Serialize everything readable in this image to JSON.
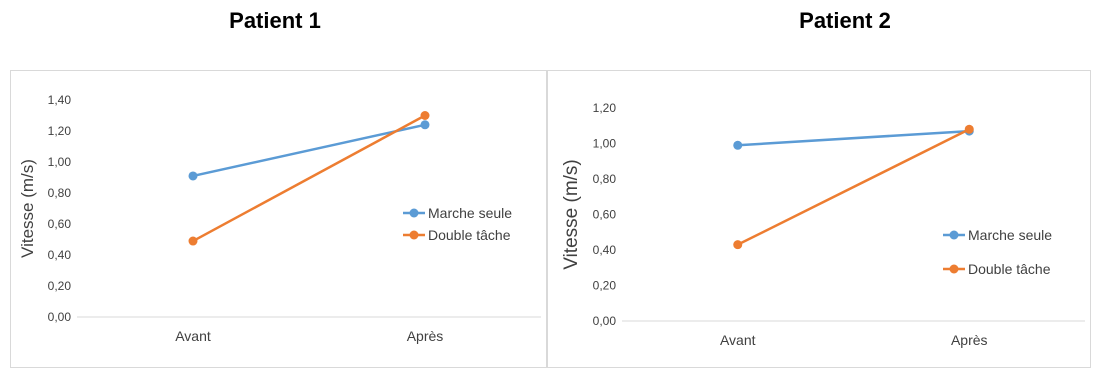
{
  "titles": {
    "left": "Patient 1",
    "right": "Patient 2"
  },
  "chart_data": [
    {
      "type": "line",
      "title": "Patient 1",
      "categories": [
        "Avant",
        "Après"
      ],
      "ylabel": "Vitesse (m/s)",
      "xlabel": "",
      "ylim": [
        0,
        1.4
      ],
      "yticks": [
        "0,00",
        "0,20",
        "0,40",
        "0,60",
        "0,80",
        "1,00",
        "1,20",
        "1,40"
      ],
      "grid": false,
      "legend": "right",
      "series": [
        {
          "name": "Marche seule",
          "color": "#5b9bd5",
          "values": [
            0.91,
            1.24
          ]
        },
        {
          "name": "Double tâche",
          "color": "#ed7d31",
          "values": [
            0.49,
            1.3
          ]
        }
      ]
    },
    {
      "type": "line",
      "title": "Patient 2",
      "categories": [
        "Avant",
        "Après"
      ],
      "ylabel": "Vitesse (m/s)",
      "xlabel": "",
      "ylim": [
        0,
        1.2
      ],
      "yticks": [
        "0,00",
        "0,20",
        "0,40",
        "0,60",
        "0,80",
        "1,00",
        "1,20"
      ],
      "grid": false,
      "legend": "right",
      "series": [
        {
          "name": "Marche seule",
          "color": "#5b9bd5",
          "values": [
            0.99,
            1.07
          ]
        },
        {
          "name": "Double tâche",
          "color": "#ed7d31",
          "values": [
            0.43,
            1.08
          ]
        }
      ]
    }
  ]
}
